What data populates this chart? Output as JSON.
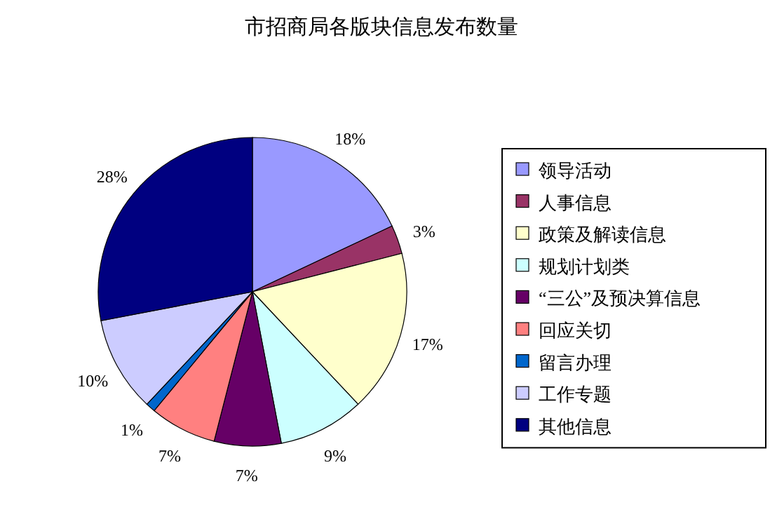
{
  "chart_data": {
    "type": "pie",
    "title": "市招商局各版块信息发布数量",
    "categories": [
      "领导活动",
      "人事信息",
      "政策及解读信息",
      "规划计划类",
      "“三公”及预决算信息",
      "回应关切",
      "留言办理",
      "工作专题",
      "其他信息"
    ],
    "values": [
      18,
      3,
      17,
      9,
      7,
      7,
      1,
      10,
      28
    ],
    "colors": [
      "#9999ff",
      "#993366",
      "#ffffcc",
      "#ccffff",
      "#660066",
      "#ff8080",
      "#0066cc",
      "#ccccff",
      "#000080"
    ],
    "value_labels": [
      "18%",
      "3%",
      "17%",
      "9%",
      "7%",
      "7%",
      "1%",
      "10%",
      "28%"
    ],
    "legend": "right"
  }
}
